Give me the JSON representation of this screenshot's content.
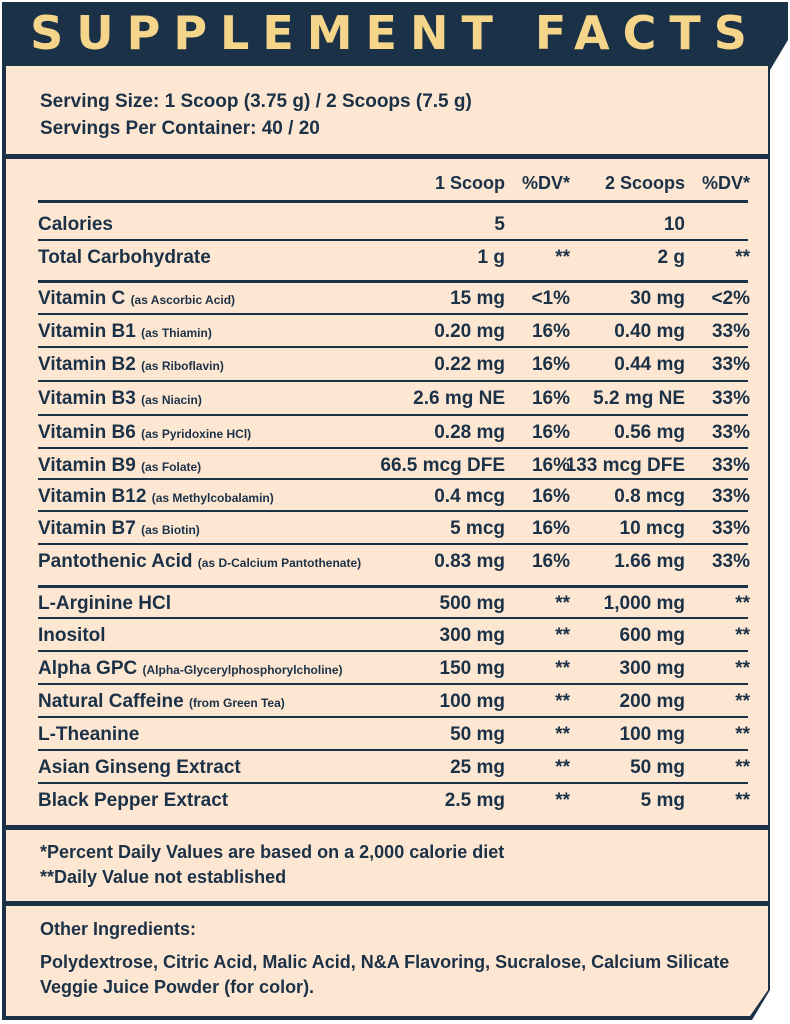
{
  "title": "SUPPLEMENT FACTS",
  "colors": {
    "navy": "#1b3147",
    "cream": "#fde7d2",
    "gold": "#f5d58a"
  },
  "serving": {
    "size": "Serving Size: 1 Scoop (3.75 g) / 2 Scoops (7.5 g)",
    "per_container": "Servings Per Container: 40 / 20"
  },
  "headers": {
    "col1": "1 Scoop",
    "col2": "%DV*",
    "col3": "2 Scoops",
    "col4": "%DV*"
  },
  "rows": [
    {
      "name": "Calories",
      "sub": "",
      "v1": "5",
      "dv1": "",
      "v2": "10",
      "dv2": ""
    },
    {
      "name": "Total Carbohydrate",
      "sub": "",
      "v1": "1 g",
      "dv1": "**",
      "v2": "2 g",
      "dv2": "**"
    },
    {
      "name": "Vitamin C",
      "sub": "(as Ascorbic Acid)",
      "v1": "15 mg",
      "dv1": "<1%",
      "v2": "30 mg",
      "dv2": "<2%"
    },
    {
      "name": "Vitamin B1",
      "sub": "(as Thiamin)",
      "v1": "0.20 mg",
      "dv1": "16%",
      "v2": "0.40 mg",
      "dv2": "33%"
    },
    {
      "name": "Vitamin B2",
      "sub": "(as Riboflavin)",
      "v1": "0.22 mg",
      "dv1": "16%",
      "v2": "0.44 mg",
      "dv2": "33%"
    },
    {
      "name": "Vitamin B3",
      "sub": "(as Niacin)",
      "v1": "2.6 mg NE",
      "dv1": "16%",
      "v2": "5.2 mg NE",
      "dv2": "33%"
    },
    {
      "name": "Vitamin B6",
      "sub": "(as Pyridoxine HCl)",
      "v1": "0.28 mg",
      "dv1": "16%",
      "v2": "0.56 mg",
      "dv2": "33%"
    },
    {
      "name": "Vitamin B9",
      "sub": "(as Folate)",
      "v1": "66.5 mcg DFE",
      "dv1": "16%",
      "v2": "133 mcg DFE",
      "dv2": "33%"
    },
    {
      "name": "Vitamin B12",
      "sub": "(as Methylcobalamin)",
      "v1": "0.4 mcg",
      "dv1": "16%",
      "v2": "0.8 mcg",
      "dv2": "33%"
    },
    {
      "name": "Vitamin B7",
      "sub": "(as Biotin)",
      "v1": "5 mcg",
      "dv1": "16%",
      "v2": "10 mcg",
      "dv2": "33%"
    },
    {
      "name": "Pantothenic Acid",
      "sub": "(as D-Calcium Pantothenate)",
      "v1": "0.83 mg",
      "dv1": "16%",
      "v2": "1.66 mg",
      "dv2": "33%"
    },
    {
      "name": "L-Arginine HCl",
      "sub": "",
      "v1": "500 mg",
      "dv1": "**",
      "v2": "1,000 mg",
      "dv2": "**"
    },
    {
      "name": "Inositol",
      "sub": "",
      "v1": "300 mg",
      "dv1": "**",
      "v2": "600 mg",
      "dv2": "**"
    },
    {
      "name": "Alpha GPC",
      "sub": "(Alpha-Glycerylphosphorylcholine)",
      "v1": "150 mg",
      "dv1": "**",
      "v2": "300 mg",
      "dv2": "**"
    },
    {
      "name": "Natural Caffeine",
      "sub": "(from Green Tea)",
      "v1": "100 mg",
      "dv1": "**",
      "v2": "200 mg",
      "dv2": "**"
    },
    {
      "name": "L-Theanine",
      "sub": "",
      "v1": "50 mg",
      "dv1": "**",
      "v2": "100 mg",
      "dv2": "**"
    },
    {
      "name": "Asian Ginseng Extract",
      "sub": "",
      "v1": "25 mg",
      "dv1": "**",
      "v2": "50 mg",
      "dv2": "**"
    },
    {
      "name": "Black Pepper Extract",
      "sub": "",
      "v1": "2.5 mg",
      "dv1": "**",
      "v2": "5 mg",
      "dv2": "**"
    }
  ],
  "footnotes": {
    "dv_note": "*Percent Daily Values are based on a 2,000 calorie diet",
    "not_established": "**Daily Value not established"
  },
  "other_ingredients": {
    "heading": "Other Ingredients:",
    "line1": "Polydextrose, Citric Acid, Malic Acid, N&A Flavoring, Sucralose, Calcium Silicate",
    "line2": "Veggie Juice Powder (for color)."
  }
}
